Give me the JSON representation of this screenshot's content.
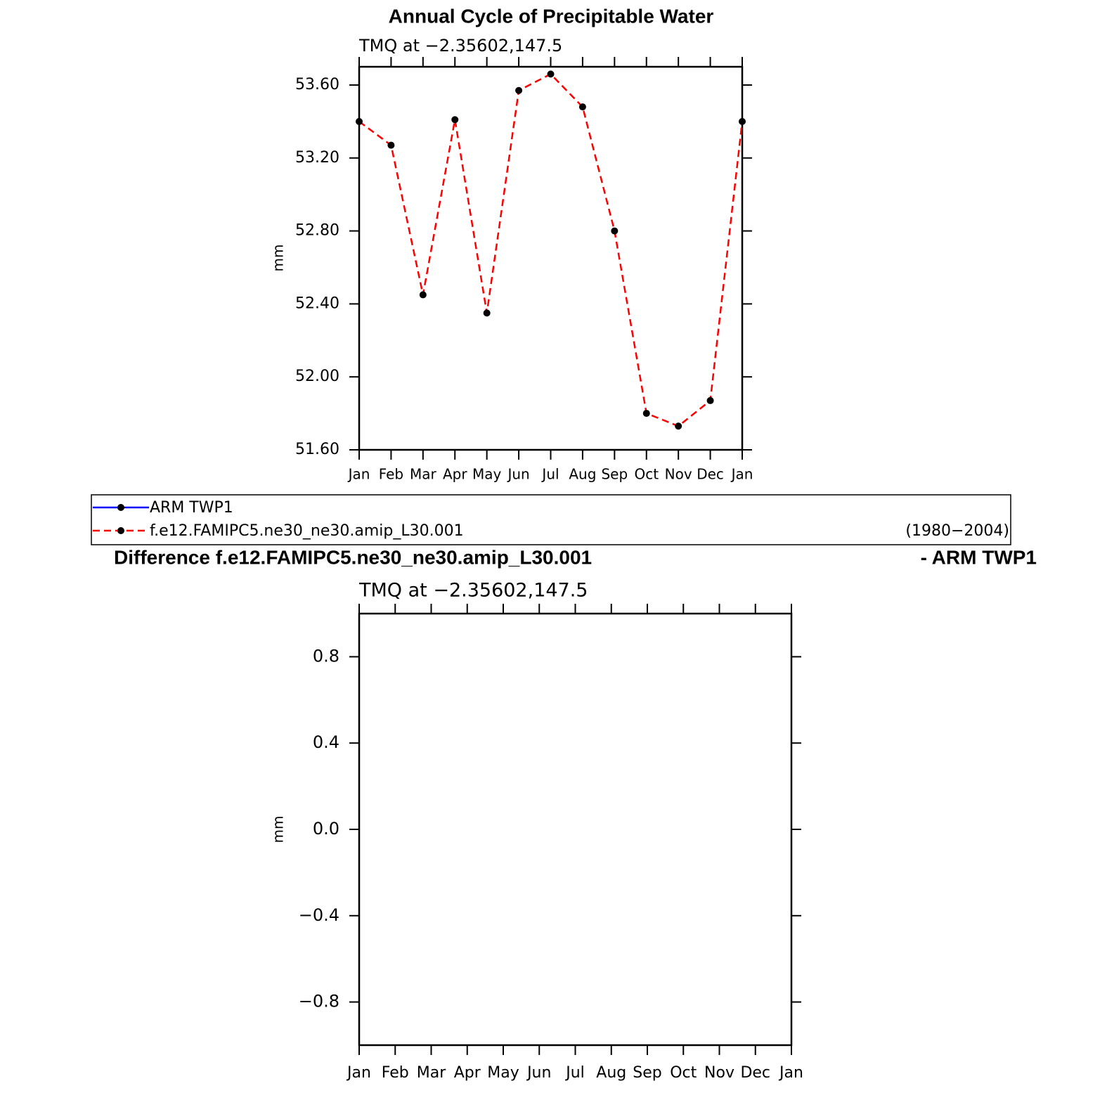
{
  "chart_data": [
    {
      "type": "line",
      "title": "Annual Cycle of Precipitable Water",
      "subtitle": "TMQ at −2.35602,147.5",
      "ylabel": "mm",
      "categories": [
        "Jan",
        "Feb",
        "Mar",
        "Apr",
        "May",
        "Jun",
        "Jul",
        "Aug",
        "Sep",
        "Oct",
        "Nov",
        "Dec",
        "Jan"
      ],
      "ylim": [
        51.6,
        53.7
      ],
      "yticks": [
        {
          "value": 51.6,
          "label": "51.60"
        },
        {
          "value": 52.0,
          "label": "52.00"
        },
        {
          "value": 52.4,
          "label": "52.40"
        },
        {
          "value": 52.8,
          "label": "52.80"
        },
        {
          "value": 53.2,
          "label": "53.20"
        },
        {
          "value": 53.6,
          "label": "53.60"
        }
      ],
      "series": [
        {
          "name": "ARM TWP1",
          "color": "#0000ff",
          "dash": false,
          "values": [
            null,
            null,
            null,
            null,
            null,
            null,
            null,
            null,
            null,
            null,
            null,
            null,
            null
          ]
        },
        {
          "name": "f.e12.FAMIPC5.ne30_ne30.amip_L30.001",
          "color": "#ff0000",
          "dash": true,
          "values": [
            53.4,
            53.27,
            52.45,
            53.41,
            52.35,
            53.57,
            53.66,
            53.48,
            52.8,
            51.8,
            51.73,
            51.87,
            53.4
          ]
        }
      ],
      "legend_note": "(1980−2004)"
    },
    {
      "type": "line",
      "title": "Difference f.e12.FAMIPC5.ne30_ne30.amip_L30.001",
      "title_suffix": "- ARM TWP1",
      "subtitle": "TMQ at −2.35602,147.5",
      "ylabel": "mm",
      "categories": [
        "Jan",
        "Feb",
        "Mar",
        "Apr",
        "May",
        "Jun",
        "Jul",
        "Aug",
        "Sep",
        "Oct",
        "Nov",
        "Dec",
        "Jan"
      ],
      "ylim": [
        -1,
        1
      ],
      "yticks": [
        {
          "value": -0.8,
          "label": "−0.8"
        },
        {
          "value": -0.4,
          "label": "−0.4"
        },
        {
          "value": 0,
          "label": "0.0"
        },
        {
          "value": 0.4,
          "label": "0.4"
        },
        {
          "value": 0.8,
          "label": "0.8"
        }
      ]
    }
  ]
}
